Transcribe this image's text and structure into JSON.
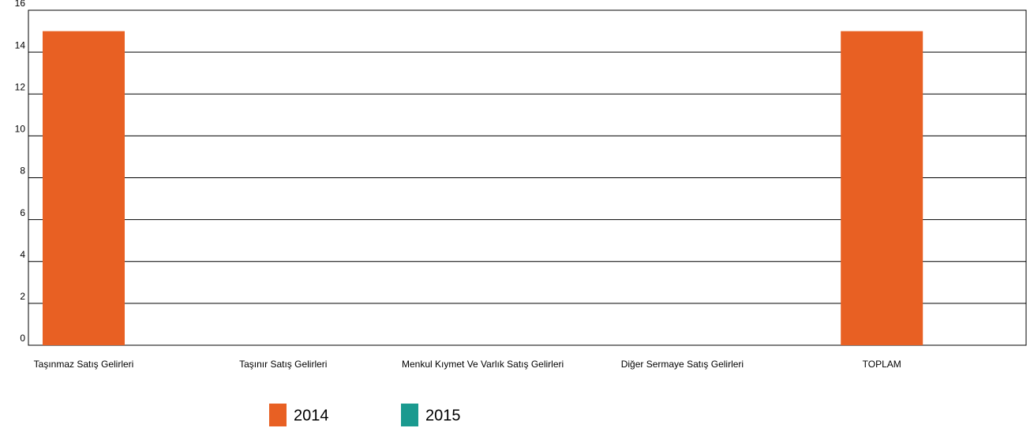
{
  "chart_data": {
    "type": "bar",
    "categories": [
      "Taşınmaz Satış Gelirleri",
      "Taşınır Satış Gelirleri",
      "Menkul Kıymet Ve Varlık Satış Gelirleri",
      "Diğer Sermaye Satış Gelirleri",
      "TOPLAM"
    ],
    "series": [
      {
        "name": "2014",
        "color": "#e86023",
        "values": [
          15,
          0,
          0,
          0,
          15
        ]
      },
      {
        "name": "2015",
        "color": "#1a9a8f",
        "values": [
          0,
          0,
          0,
          0,
          0
        ]
      }
    ],
    "ylim": [
      0,
      16
    ],
    "yticks": [
      0,
      2,
      4,
      6,
      8,
      10,
      12,
      14,
      16
    ],
    "grid": true,
    "legend": "bottom"
  }
}
